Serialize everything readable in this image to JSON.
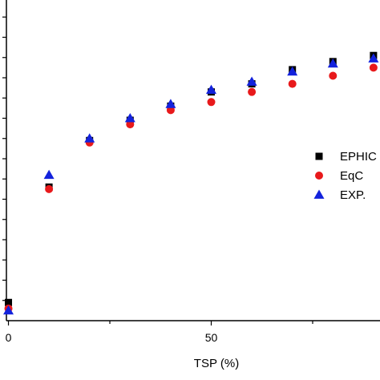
{
  "chart_data": {
    "type": "scatter",
    "xlabel": "TSP (%)",
    "ylabel": "",
    "title": "",
    "x_ticks": [
      0,
      50
    ],
    "x_tick_labels": [
      "0",
      "50"
    ],
    "xlim": [
      -0.5,
      92
    ],
    "ylim": [
      0,
      16
    ],
    "grid": false,
    "legend_position": "right",
    "series": [
      {
        "name": "EPHIC",
        "marker": "square",
        "color": "#000000",
        "x": [
          0,
          10,
          20,
          30,
          40,
          50,
          60,
          70,
          80,
          90
        ],
        "y": [
          0.9,
          6.6,
          8.9,
          9.9,
          10.6,
          11.3,
          11.7,
          12.4,
          12.8,
          13.1
        ]
      },
      {
        "name": "EqC",
        "marker": "circle",
        "color": "#e8191b",
        "x": [
          0,
          10,
          20,
          30,
          40,
          50,
          60,
          70,
          80,
          90
        ],
        "y": [
          0.6,
          6.5,
          8.8,
          9.7,
          10.4,
          10.8,
          11.3,
          11.7,
          12.1,
          12.5
        ]
      },
      {
        "name": "EXP.",
        "marker": "triangle",
        "color": "#1322dc",
        "x": [
          0,
          10,
          20,
          30,
          40,
          50,
          60,
          70,
          80,
          90
        ],
        "y": [
          0.5,
          7.2,
          9.0,
          10.0,
          10.7,
          11.4,
          11.8,
          12.3,
          12.7,
          12.95
        ]
      }
    ]
  }
}
